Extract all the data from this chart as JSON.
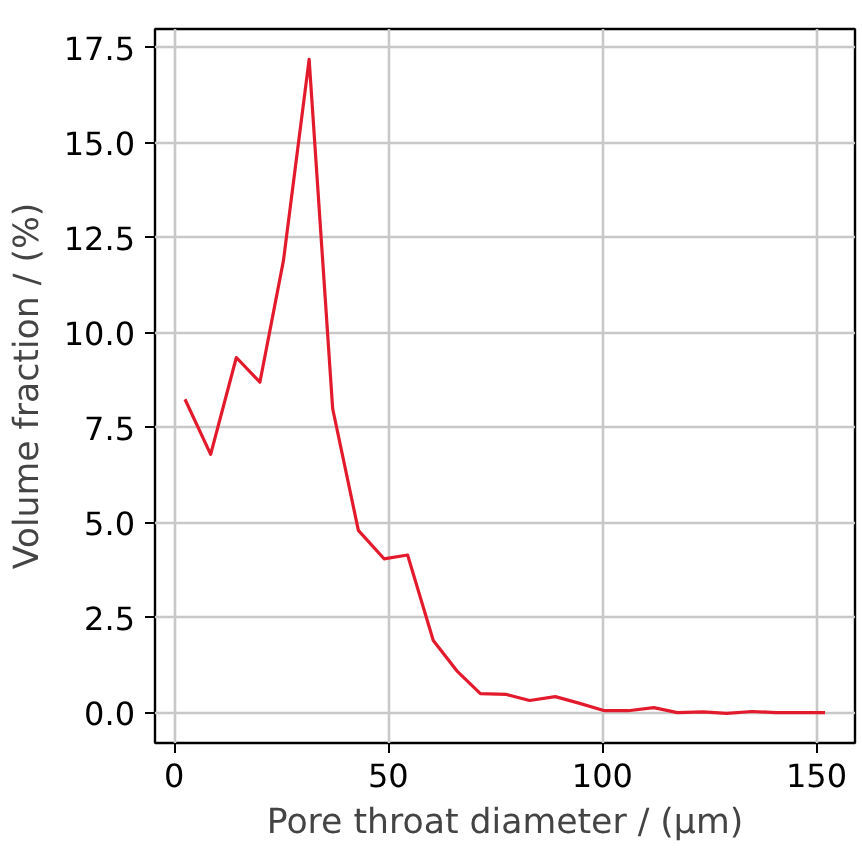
{
  "chart_data": {
    "type": "line",
    "xlabel": "Pore throat diameter / (µm)",
    "ylabel": "Volume fraction / (%)",
    "x": [
      2.5,
      8.5,
      14.5,
      20,
      25.5,
      31.5,
      37,
      43,
      49,
      54.5,
      60.5,
      66,
      71.5,
      77.5,
      83,
      89,
      94.5,
      100.5,
      106,
      112,
      117.5,
      123.5,
      129,
      135,
      140.5,
      146.5,
      152
    ],
    "series": [
      {
        "color": "#e31a2c",
        "values": [
          8.25,
          6.8,
          9.35,
          8.7,
          11.9,
          17.2,
          8.0,
          4.8,
          4.05,
          4.15,
          1.9,
          1.1,
          0.5,
          0.48,
          0.32,
          0.42,
          0.25,
          0.05,
          0.05,
          0.13,
          0.0,
          0.02,
          -0.02,
          0.03,
          0.0,
          0.0,
          0.0
        ]
      }
    ],
    "xlim": [
      -4.5,
      159
    ],
    "ylim": [
      -0.8,
      18.0
    ],
    "xticks": [
      0,
      50,
      100,
      150
    ],
    "yticks": [
      {
        "value": 0,
        "label": "0.0"
      },
      {
        "value": 2.5,
        "label": "2.5"
      },
      {
        "value": 5,
        "label": "5.0"
      },
      {
        "value": 7.5,
        "label": "7.5"
      },
      {
        "value": 10,
        "label": "10.0"
      },
      {
        "value": 12.5,
        "label": "12.5"
      },
      {
        "value": 15,
        "label": "15.0"
      },
      {
        "value": 17.5,
        "label": "17.5"
      }
    ],
    "grid": true,
    "line_style": "solid"
  }
}
